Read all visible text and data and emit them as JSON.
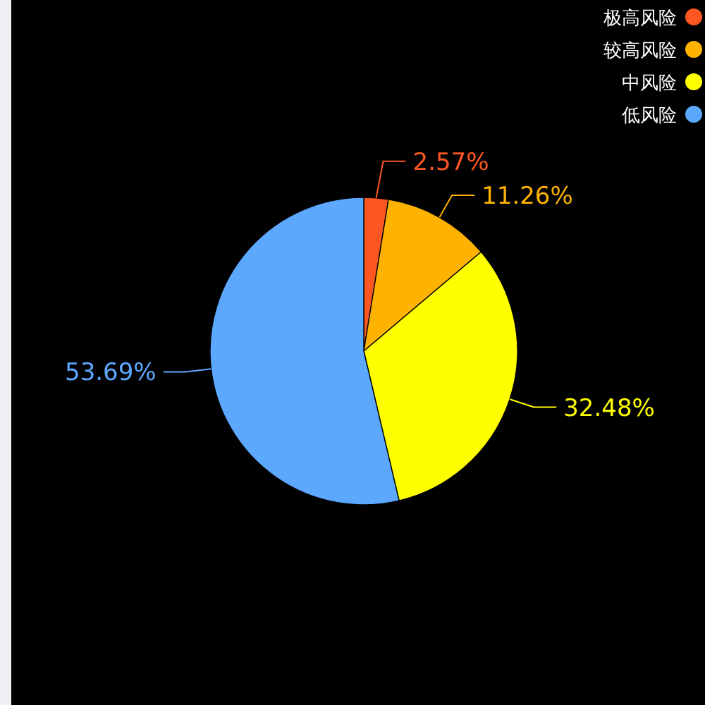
{
  "chart_data": {
    "type": "pie",
    "categories": [
      "极高风险",
      "较高风险",
      "中风险",
      "低风险"
    ],
    "values": [
      2.57,
      11.26,
      32.48,
      53.69
    ],
    "value_labels": [
      "2.57%",
      "11.26%",
      "32.48%",
      "53.69%"
    ],
    "colors": [
      "#ff5722",
      "#ffb300",
      "#ffff00",
      "#5ca8ff"
    ],
    "legend": "top right"
  }
}
